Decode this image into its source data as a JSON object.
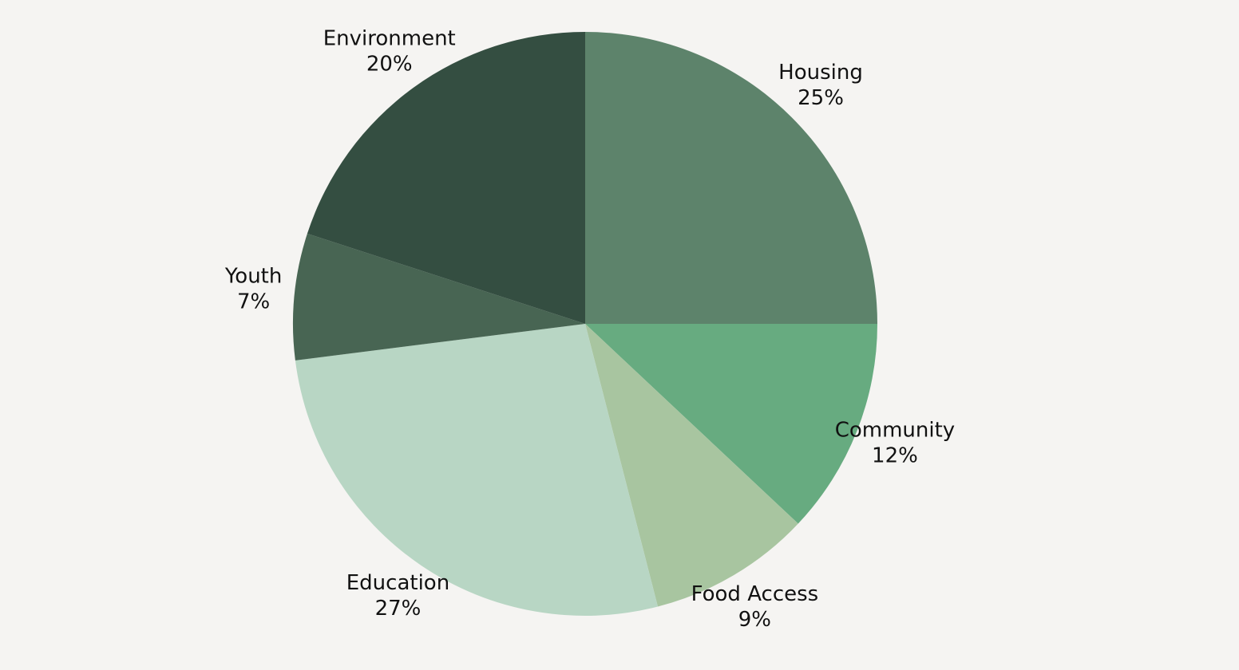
{
  "chart_data": {
    "type": "pie",
    "title": "",
    "start_angle_deg": 0,
    "direction": "clockwise",
    "slices": [
      {
        "label": "Housing",
        "value": 25,
        "value_label": "25%",
        "color": "#5d836b"
      },
      {
        "label": "Community",
        "value": 12,
        "value_label": "12%",
        "color": "#67ab80"
      },
      {
        "label": "Food Access",
        "value": 9,
        "value_label": "9%",
        "color": "#a8c5a0"
      },
      {
        "label": "Education",
        "value": 27,
        "value_label": "27%",
        "color": "#b8d6c4"
      },
      {
        "label": "Youth",
        "value": 7,
        "value_label": "7%",
        "color": "#486553"
      },
      {
        "label": "Environment",
        "value": 20,
        "value_label": "20%",
        "color": "#344e41"
      }
    ],
    "legend": "none",
    "labels": "outside"
  },
  "colors": {
    "background": "#f5f4f2",
    "label_text": "#111111"
  }
}
